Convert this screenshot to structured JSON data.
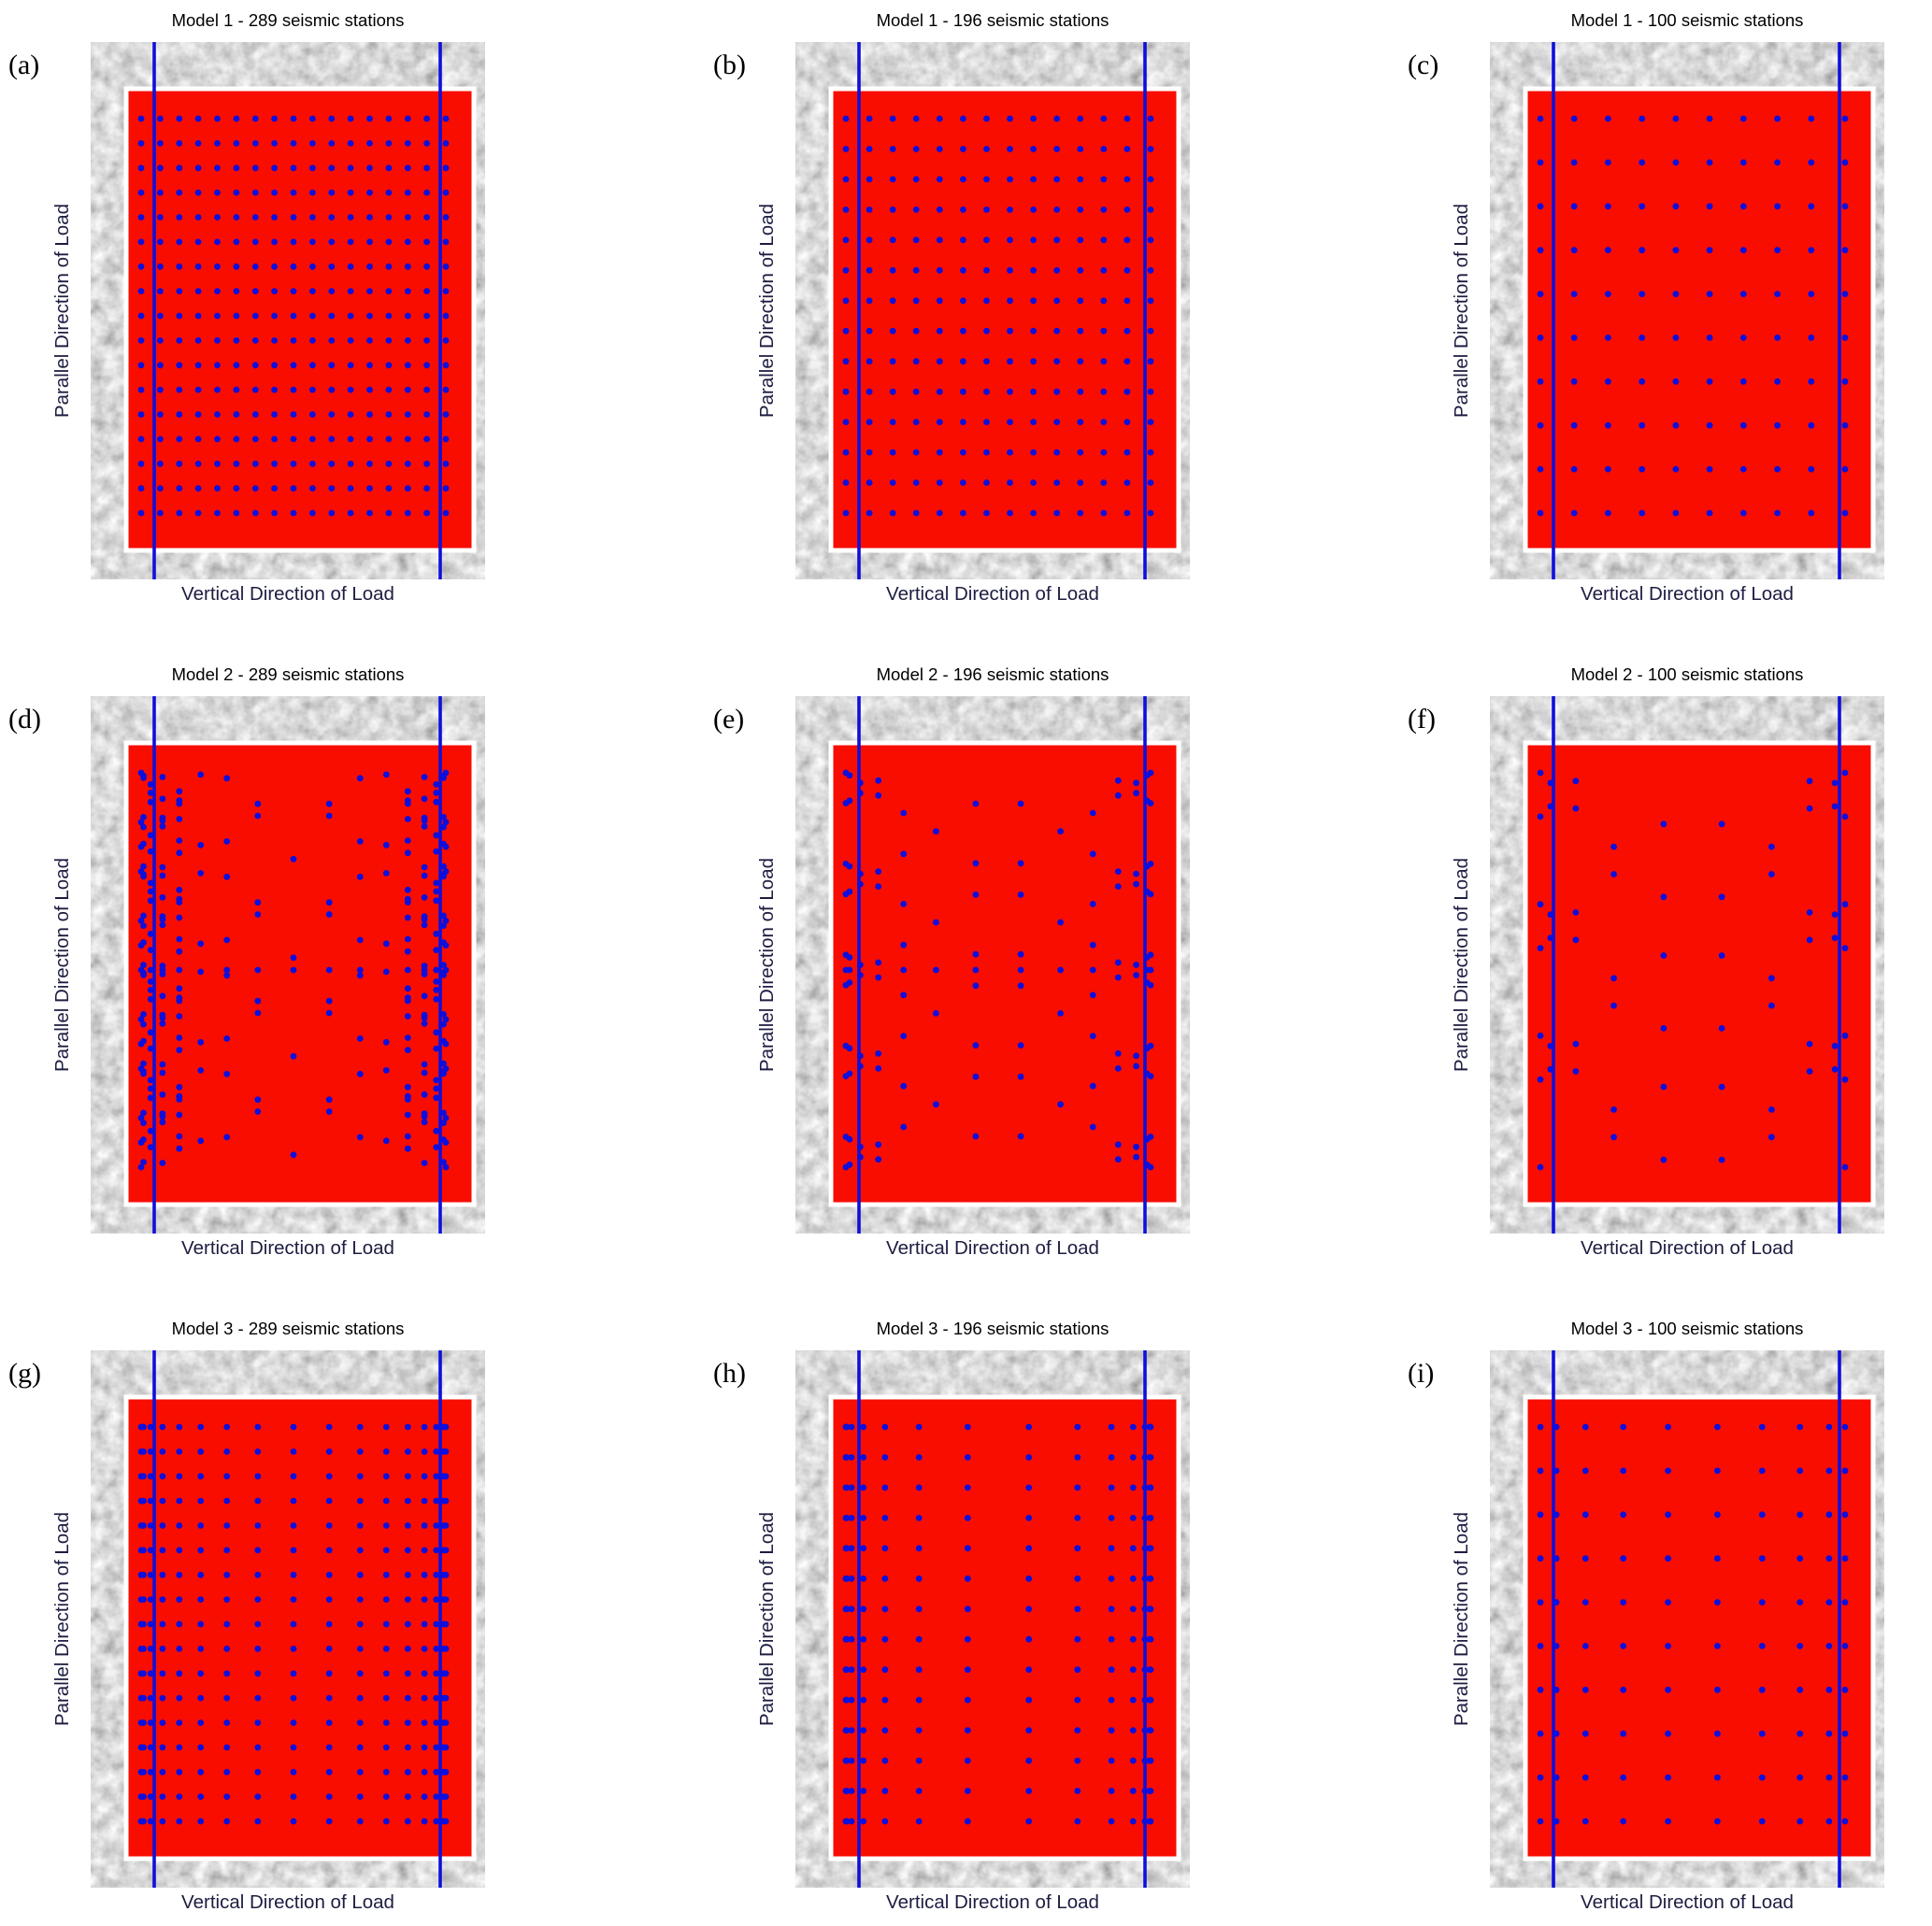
{
  "figure": {
    "kind": "seismic station layout figure over concrete specimen photo",
    "x_axis_label": "Vertical Direction of Load",
    "y_axis_label": "Parallel Direction of Load",
    "colors": {
      "monitored_region": "#f80d00",
      "stations": "#0f0fdc",
      "load_boundary_lines": "#0f0fdc",
      "photo_gray": "#8a8a8a",
      "overlay_border": "#ffffff",
      "title_text": "#000000",
      "axis_label_text": "#1d1d42"
    }
  },
  "chart_data": {
    "type": "scatter",
    "layout": "3x3 panel grid",
    "description": "Nine panels showing three station-layout models at three station densities. Each panel: grayscale concrete specimen photo, red monitored-region overlay with white border, two vertical blue load-boundary lines, blue dots = seismic stations.",
    "models": [
      1,
      2,
      3
    ],
    "station_counts": [
      289,
      196,
      100
    ],
    "panels": [
      {
        "label": "(a)",
        "title": "Model 1 - 289 seismic stations",
        "model": 1,
        "stations": 289,
        "grid": "17x17",
        "pattern": {
          "type": "uniform_grid",
          "n": 17
        }
      },
      {
        "label": "(b)",
        "title": "Model 1 - 196 seismic stations",
        "model": 1,
        "stations": 196,
        "grid": "14x14",
        "pattern": {
          "type": "uniform_grid",
          "n": 14
        }
      },
      {
        "label": "(c)",
        "title": "Model 1 - 100 seismic stations",
        "model": 1,
        "stations": 100,
        "grid": "10x10",
        "pattern": {
          "type": "uniform_grid",
          "n": 10
        }
      },
      {
        "label": "(d)",
        "title": "Model 2 - 289 seismic stations",
        "model": 2,
        "stations": 289,
        "grid": "17 columns, diagonal lattice",
        "pattern": {
          "type": "diagonal_lattice",
          "n": 17,
          "cluster_p": 2.0,
          "full_mid_row": true,
          "lines": [
            {
              "period": 4,
              "span": 15
            },
            {
              "period": 2,
              "span": 26,
              "edge_zone": 0.17
            }
          ]
        }
      },
      {
        "label": "(e)",
        "title": "Model 2 - 196 seismic stations",
        "model": 2,
        "stations": 196,
        "grid": "14 columns, diagonal lattice",
        "pattern": {
          "type": "diagonal_lattice",
          "n": 14,
          "cluster_p": 2.0,
          "full_mid_row": true,
          "lines": [
            {
              "period": 3,
              "span": 7
            }
          ]
        }
      },
      {
        "label": "(f)",
        "title": "Model 2 - 100 seismic stations",
        "model": 2,
        "stations": 100,
        "grid": "10 columns, diagonal lattice",
        "pattern": {
          "type": "diagonal_lattice",
          "n": 10,
          "cluster_p": 1.8,
          "lines": [
            {
              "period": 3,
              "span": 7
            }
          ]
        }
      },
      {
        "label": "(g)",
        "title": "Model 3 - 289 seismic stations",
        "model": 3,
        "stations": 289,
        "grid": "17x17 edge-clustered",
        "pattern": {
          "type": "edge_clustered_grid",
          "n": 17,
          "cluster_p": 2.0
        }
      },
      {
        "label": "(h)",
        "title": "Model 3 - 196 seismic stations",
        "model": 3,
        "stations": 196,
        "grid": "14x14 edge-clustered",
        "pattern": {
          "type": "edge_clustered_grid",
          "n": 14,
          "cluster_p": 2.8
        }
      },
      {
        "label": "(i)",
        "title": "Model 3 - 100 seismic stations",
        "model": 3,
        "stations": 100,
        "grid": "10x10 edge-clustered",
        "pattern": {
          "type": "edge_clustered_grid",
          "n": 10,
          "cluster_p": 1.5
        }
      }
    ]
  }
}
